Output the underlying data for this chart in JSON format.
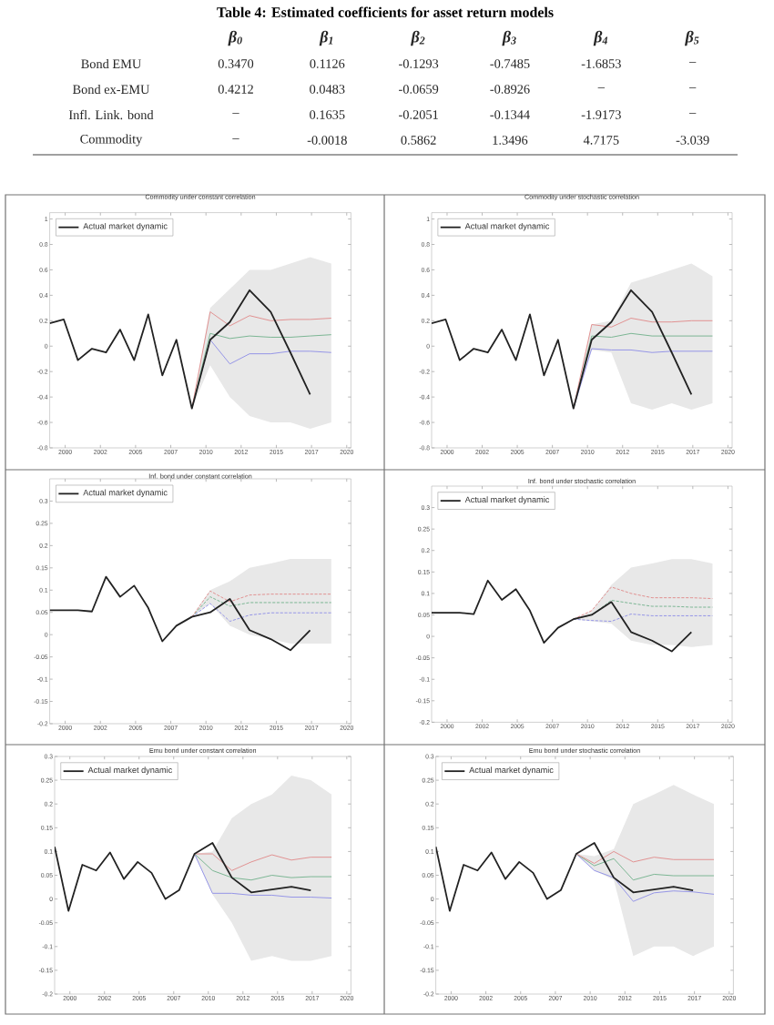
{
  "chart_data": [
    {
      "type": "heatmap",
      "title": "Table 4: Estimated coefficients for asset return models",
      "categories": [
        "β$_{0}$",
        "β$_{1}$",
        "β$_{2}$",
        "β$_{3}$",
        "β$_{4}$",
        "β$_{5}$"
      ],
      "y_categories": [
        "Bond EMU",
        "Bond ex-EMU",
        "Infl. Link. bond",
        "Commodity"
      ],
      "cells": [
        [
          0.347,
          0.1126,
          -0.1293,
          -0.7485,
          -1.6853,
          null
        ],
        [
          0.4212,
          0.0483,
          -0.0659,
          -0.8926,
          null,
          null
        ],
        [
          null,
          0.1635,
          -0.2051,
          -0.1344,
          -1.9173,
          null
        ],
        [
          null,
          -0.0018,
          0.5862,
          1.3496,
          4.7175,
          -3.039
        ]
      ],
      "cell_labels": [
        [
          "0.3470",
          "0.1126",
          "-0.1293",
          "-0.7485",
          "-1.6853",
          "–"
        ],
        [
          "0.4212",
          "0.0483",
          "-0.0659",
          "-0.8926",
          "–",
          "–"
        ],
        [
          "–",
          "0.1635",
          "-0.2051",
          "-0.1344",
          "-1.9173",
          "–"
        ],
        [
          "–",
          "-0.0018",
          "0.5862",
          "1.3496",
          "4.7175",
          "-3.039"
        ]
      ]
    },
    {
      "type": "line",
      "title": "Commodity under constant correlation",
      "xlim": [
        1998.9,
        2020.3
      ],
      "xticks": [
        2000,
        {
          "value": 2002.5,
          "label": "2002"
        },
        2005,
        {
          "value": 2007.5,
          "label": "2007"
        },
        2010,
        {
          "value": 2012.5,
          "label": "2012"
        },
        2015,
        {
          "value": 2017.5,
          "label": "2017"
        },
        2020
      ],
      "ylim": [
        -0.8,
        1.05
      ],
      "yticks": [
        -0.8,
        -0.6,
        -0.4,
        -0.2,
        0,
        0.2,
        0.4,
        0.6,
        0.8,
        1
      ],
      "legend": "top left",
      "series": [
        {
          "name": "Actual market dynamic",
          "color": "#222222",
          "x": [
            1998.9,
            1999.9,
            2000.9,
            2001.9,
            2002.9,
            2003.9,
            2004.9,
            2005.9,
            2006.9,
            2007.9,
            2009.0,
            2010.3,
            2011.7,
            2013.1,
            2014.6,
            2016.0,
            2017.4
          ],
          "values": [
            0.18,
            0.21,
            -0.11,
            -0.02,
            -0.05,
            0.13,
            -0.11,
            0.25,
            -0.23,
            0.05,
            -0.49,
            0.05,
            0.19,
            0.44,
            0.27,
            -0.05,
            -0.38
          ]
        },
        {
          "color": "#e08888",
          "x": [
            2009.0,
            2010.3,
            2011.7,
            2013.1,
            2014.6,
            2016.0,
            2017.4,
            2018.9
          ],
          "values": [
            -0.49,
            0.27,
            0.16,
            0.24,
            0.2,
            0.21,
            0.21,
            0.22
          ]
        },
        {
          "color": "#6fb08a",
          "x": [
            2009.0,
            2010.3,
            2011.7,
            2013.1,
            2014.6,
            2016.0,
            2017.4,
            2018.9
          ],
          "values": [
            -0.49,
            0.1,
            0.06,
            0.08,
            0.07,
            0.07,
            0.08,
            0.09
          ],
          "lower": [
            -0.49,
            -0.15,
            -0.4,
            -0.55,
            -0.6,
            -0.6,
            -0.65,
            -0.6
          ],
          "upper": [
            -0.49,
            0.3,
            0.45,
            0.6,
            0.6,
            0.65,
            0.7,
            0.65
          ]
        },
        {
          "color": "#8c8ce6",
          "x": [
            2009.0,
            2010.3,
            2011.7,
            2013.1,
            2014.6,
            2016.0,
            2017.4,
            2018.9
          ],
          "values": [
            -0.49,
            0.05,
            -0.14,
            -0.06,
            -0.06,
            -0.04,
            -0.04,
            -0.05
          ]
        }
      ]
    },
    {
      "type": "line",
      "title": "Commodity under stochastic correlation",
      "xlim": [
        1998.9,
        2020.3
      ],
      "xticks": [
        2000,
        {
          "value": 2002.5,
          "label": "2002"
        },
        2005,
        {
          "value": 2007.5,
          "label": "2007"
        },
        2010,
        {
          "value": 2012.5,
          "label": "2012"
        },
        2015,
        {
          "value": 2017.5,
          "label": "2017"
        },
        2020
      ],
      "ylim": [
        -0.8,
        1.05
      ],
      "yticks": [
        -0.8,
        -0.6,
        -0.4,
        -0.2,
        0,
        0.2,
        0.4,
        0.6,
        0.8,
        1
      ],
      "legend": "top left",
      "series": [
        {
          "name": "Actual market dynamic",
          "color": "#222222",
          "x": [
            1998.9,
            1999.9,
            2000.9,
            2001.9,
            2002.9,
            2003.9,
            2004.9,
            2005.9,
            2006.9,
            2007.9,
            2009.0,
            2010.3,
            2011.7,
            2013.1,
            2014.6,
            2016.0,
            2017.4
          ],
          "values": [
            0.18,
            0.21,
            -0.11,
            -0.02,
            -0.05,
            0.13,
            -0.11,
            0.25,
            -0.23,
            0.05,
            -0.49,
            0.05,
            0.19,
            0.44,
            0.27,
            -0.05,
            -0.38
          ]
        },
        {
          "color": "#e08888",
          "x": [
            2009.0,
            2010.3,
            2011.7,
            2013.1,
            2014.6,
            2016.0,
            2017.4,
            2018.9
          ],
          "values": [
            -0.49,
            0.17,
            0.15,
            0.22,
            0.19,
            0.19,
            0.2,
            0.2
          ]
        },
        {
          "color": "#6fb08a",
          "x": [
            2009.0,
            2010.3,
            2011.7,
            2013.1,
            2014.6,
            2016.0,
            2017.4,
            2018.9
          ],
          "values": [
            -0.49,
            0.08,
            0.07,
            0.1,
            0.08,
            0.08,
            0.08,
            0.08
          ],
          "lower": [
            -0.49,
            -0.03,
            -0.05,
            -0.45,
            -0.5,
            -0.45,
            -0.5,
            -0.45
          ],
          "upper": [
            -0.49,
            0.17,
            0.2,
            0.5,
            0.55,
            0.6,
            0.65,
            0.55
          ]
        },
        {
          "color": "#8c8ce6",
          "x": [
            2009.0,
            2010.3,
            2011.7,
            2013.1,
            2014.6,
            2016.0,
            2017.4,
            2018.9
          ],
          "values": [
            -0.49,
            -0.02,
            -0.03,
            -0.03,
            -0.05,
            -0.04,
            -0.04,
            -0.04
          ]
        }
      ]
    },
    {
      "type": "line",
      "title": "Inf. bond under constant correlation",
      "xlim": [
        1998.9,
        2020.3
      ],
      "xticks": [
        2000,
        {
          "value": 2002.5,
          "label": "2002"
        },
        2005,
        {
          "value": 2007.5,
          "label": "2007"
        },
        2010,
        {
          "value": 2012.5,
          "label": "2012"
        },
        2015,
        {
          "value": 2017.5,
          "label": "2017"
        },
        2020
      ],
      "ylim": [
        -0.2,
        0.35
      ],
      "yticks": [
        -0.2,
        -0.15,
        -0.1,
        -0.05,
        0,
        0.05,
        0.1,
        0.15,
        0.2,
        0.25,
        0.3
      ],
      "legend": "top left",
      "series": [
        {
          "name": "Actual market dynamic",
          "color": "#222222",
          "x": [
            1998.9,
            1999.9,
            2000.9,
            2001.9,
            2002.9,
            2003.9,
            2004.9,
            2005.9,
            2006.9,
            2007.9,
            2009.0,
            2010.3,
            2011.7,
            2013.1,
            2014.6,
            2016.0,
            2017.4
          ],
          "values": [
            0.055,
            0.055,
            0.055,
            0.052,
            0.13,
            0.085,
            0.11,
            0.06,
            -0.015,
            0.02,
            0.04,
            0.05,
            0.08,
            0.01,
            -0.01,
            -0.035,
            0.01
          ]
        },
        {
          "color": "#e08888",
          "line_style": "dashed",
          "x": [
            2009.0,
            2010.3,
            2011.7,
            2013.1,
            2014.6,
            2016.0,
            2017.4,
            2018.9
          ],
          "values": [
            0.04,
            0.098,
            0.074,
            0.089,
            0.091,
            0.091,
            0.091,
            0.091
          ]
        },
        {
          "color": "#6fb08a",
          "line_style": "dashed",
          "x": [
            2009.0,
            2010.3,
            2011.7,
            2013.1,
            2014.6,
            2016.0,
            2017.4,
            2018.9
          ],
          "values": [
            0.04,
            0.085,
            0.064,
            0.072,
            0.072,
            0.072,
            0.072,
            0.072
          ],
          "lower": [
            0.04,
            0.07,
            0.02,
            0,
            -0.01,
            -0.02,
            -0.02,
            -0.02
          ],
          "upper": [
            0.04,
            0.1,
            0.12,
            0.15,
            0.16,
            0.17,
            0.17,
            0.17
          ]
        },
        {
          "color": "#8c8ce6",
          "line_style": "dashed",
          "x": [
            2009.0,
            2010.3,
            2011.7,
            2013.1,
            2014.6,
            2016.0,
            2017.4,
            2018.9
          ],
          "values": [
            0.04,
            0.07,
            0.03,
            0.044,
            0.049,
            0.049,
            0.049,
            0.049
          ]
        }
      ]
    },
    {
      "type": "line",
      "title": "Inf. bond under stochastic correlation",
      "xlim": [
        1998.9,
        2020.3
      ],
      "xticks": [
        2000,
        {
          "value": 2002.5,
          "label": "2002"
        },
        2005,
        {
          "value": 2007.5,
          "label": "2007"
        },
        2010,
        {
          "value": 2012.5,
          "label": "2012"
        },
        2015,
        {
          "value": 2017.5,
          "label": "2017"
        },
        2020
      ],
      "ylim": [
        -0.2,
        0.35
      ],
      "yticks": [
        -0.2,
        -0.15,
        -0.1,
        -0.05,
        0,
        0.05,
        0.1,
        0.15,
        0.2,
        0.25,
        0.3
      ],
      "legend": "top left",
      "series": [
        {
          "name": "Actual market dynamic",
          "color": "#222222",
          "x": [
            1998.9,
            1999.9,
            2000.9,
            2001.9,
            2002.9,
            2003.9,
            2004.9,
            2005.9,
            2006.9,
            2007.9,
            2009.0,
            2010.3,
            2011.7,
            2013.1,
            2014.6,
            2016.0,
            2017.4
          ],
          "values": [
            0.055,
            0.055,
            0.055,
            0.052,
            0.13,
            0.085,
            0.11,
            0.06,
            -0.015,
            0.02,
            0.04,
            0.05,
            0.08,
            0.01,
            -0.01,
            -0.035,
            0.01
          ]
        },
        {
          "color": "#e08888",
          "line_style": "dashed",
          "x": [
            2009.0,
            2010.3,
            2011.7,
            2013.1,
            2014.6,
            2016.0,
            2017.4,
            2018.9
          ],
          "values": [
            0.04,
            0.06,
            0.115,
            0.1,
            0.09,
            0.09,
            0.09,
            0.088
          ]
        },
        {
          "color": "#6fb08a",
          "line_style": "dashed",
          "x": [
            2009.0,
            2010.3,
            2011.7,
            2013.1,
            2014.6,
            2016.0,
            2017.4,
            2018.9
          ],
          "values": [
            0.04,
            0.05,
            0.084,
            0.077,
            0.07,
            0.07,
            0.068,
            0.068
          ],
          "lower": [
            0.04,
            0.035,
            0.03,
            -0.01,
            -0.02,
            -0.02,
            -0.025,
            -0.02
          ],
          "upper": [
            0.04,
            0.06,
            0.12,
            0.16,
            0.17,
            0.18,
            0.18,
            0.17
          ]
        },
        {
          "color": "#8c8ce6",
          "line_style": "dashed",
          "x": [
            2009.0,
            2010.3,
            2011.7,
            2013.1,
            2014.6,
            2016.0,
            2017.4,
            2018.9
          ],
          "values": [
            0.04,
            0.037,
            0.035,
            0.052,
            0.048,
            0.048,
            0.048,
            0.048
          ]
        }
      ]
    },
    {
      "type": "line",
      "title": "Emu bond under constant correlation",
      "xlim": [
        1998.9,
        2020.3
      ],
      "xticks": [
        2000,
        {
          "value": 2002.5,
          "label": "2002"
        },
        2005,
        {
          "value": 2007.5,
          "label": "2007"
        },
        2010,
        {
          "value": 2012.5,
          "label": "2012"
        },
        2015,
        {
          "value": 2017.5,
          "label": "2017"
        },
        2020
      ],
      "ylim": [
        -0.2,
        0.3
      ],
      "yticks": [
        -0.2,
        -0.15,
        -0.1,
        -0.05,
        0,
        0.05,
        0.1,
        0.15,
        0.2,
        0.25,
        0.3
      ],
      "legend": "top left",
      "series": [
        {
          "name": "Actual market dynamic",
          "color": "#222222",
          "x": [
            1998.9,
            1999.9,
            2000.9,
            2001.9,
            2002.9,
            2003.9,
            2004.9,
            2005.9,
            2006.9,
            2007.9,
            2009.0,
            2010.3,
            2011.7,
            2013.1,
            2014.6,
            2016.0,
            2017.4
          ],
          "values": [
            0.11,
            -0.025,
            0.072,
            0.06,
            0.098,
            0.042,
            0.078,
            0.055,
            0,
            0.019,
            0.095,
            0.118,
            0.045,
            0.014,
            0.02,
            0.026,
            0.018
          ]
        },
        {
          "color": "#e08888",
          "x": [
            2009.0,
            2010.3,
            2011.7,
            2013.1,
            2014.6,
            2016.0,
            2017.4,
            2018.9
          ],
          "values": [
            0.095,
            0.095,
            0.06,
            0.078,
            0.093,
            0.082,
            0.088,
            0.088
          ]
        },
        {
          "color": "#6fb08a",
          "x": [
            2009.0,
            2010.3,
            2011.7,
            2013.1,
            2014.6,
            2016.0,
            2017.4,
            2018.9
          ],
          "values": [
            0.095,
            0.06,
            0.045,
            0.04,
            0.05,
            0.045,
            0.047,
            0.047
          ],
          "lower": [
            0.095,
            0.01,
            -0.05,
            -0.13,
            -0.12,
            -0.13,
            -0.13,
            -0.12
          ],
          "upper": [
            0.095,
            0.1,
            0.17,
            0.2,
            0.22,
            0.26,
            0.25,
            0.22
          ]
        },
        {
          "color": "#8c8ce6",
          "x": [
            2009.0,
            2010.3,
            2011.7,
            2013.1,
            2014.6,
            2016.0,
            2017.4,
            2018.9
          ],
          "values": [
            0.095,
            0.012,
            0.012,
            0.008,
            0.008,
            0.004,
            0.004,
            0.002
          ]
        }
      ]
    },
    {
      "type": "line",
      "title": "Emu bond under stochastic correlation",
      "xlim": [
        1998.9,
        2020.3
      ],
      "xticks": [
        2000,
        {
          "value": 2002.5,
          "label": "2002"
        },
        2005,
        {
          "value": 2007.5,
          "label": "2007"
        },
        2010,
        {
          "value": 2012.5,
          "label": "2012"
        },
        2015,
        {
          "value": 2017.5,
          "label": "2017"
        },
        2020
      ],
      "ylim": [
        -0.2,
        0.3
      ],
      "yticks": [
        -0.2,
        -0.15,
        -0.1,
        -0.05,
        0,
        0.05,
        0.1,
        0.15,
        0.2,
        0.25,
        0.3
      ],
      "legend": "top left",
      "series": [
        {
          "name": "Actual market dynamic",
          "color": "#222222",
          "x": [
            1998.9,
            1999.9,
            2000.9,
            2001.9,
            2002.9,
            2003.9,
            2004.9,
            2005.9,
            2006.9,
            2007.9,
            2009.0,
            2010.3,
            2011.7,
            2013.1,
            2014.6,
            2016.0,
            2017.4
          ],
          "values": [
            0.11,
            -0.025,
            0.072,
            0.06,
            0.098,
            0.042,
            0.078,
            0.055,
            0,
            0.019,
            0.095,
            0.118,
            0.045,
            0.014,
            0.02,
            0.026,
            0.018
          ]
        },
        {
          "color": "#e08888",
          "x": [
            2009.0,
            2010.3,
            2011.7,
            2013.1,
            2014.6,
            2016.0,
            2017.4,
            2018.9
          ],
          "values": [
            0.095,
            0.075,
            0.1,
            0.078,
            0.088,
            0.083,
            0.083,
            0.083
          ]
        },
        {
          "color": "#6fb08a",
          "x": [
            2009.0,
            2010.3,
            2011.7,
            2013.1,
            2014.6,
            2016.0,
            2017.4,
            2018.9
          ],
          "values": [
            0.095,
            0.07,
            0.085,
            0.04,
            0.052,
            0.049,
            0.049,
            0.049
          ],
          "lower": [
            0.095,
            0.06,
            0.04,
            -0.12,
            -0.1,
            -0.1,
            -0.12,
            -0.1
          ],
          "upper": [
            0.095,
            0.09,
            0.105,
            0.2,
            0.22,
            0.24,
            0.22,
            0.2
          ]
        },
        {
          "color": "#8c8ce6",
          "x": [
            2009.0,
            2010.3,
            2011.7,
            2013.1,
            2014.6,
            2016.0,
            2017.4,
            2018.9
          ],
          "values": [
            0.095,
            0.06,
            0.045,
            -0.005,
            0.013,
            0.017,
            0.015,
            0.01
          ]
        }
      ]
    }
  ]
}
